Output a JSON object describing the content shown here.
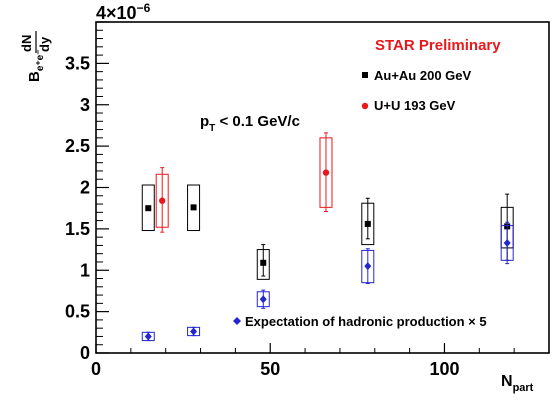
{
  "chart_data": {
    "type": "scatter",
    "xlim": [
      0,
      130
    ],
    "ylim": [
      0,
      4
    ],
    "x_ticks": [
      0,
      50,
      100
    ],
    "x_tick_labels": [
      "0",
      "50",
      "100"
    ],
    "y_ticks": [
      0,
      0.5,
      1,
      1.5,
      2,
      2.5,
      3,
      3.5,
      4
    ],
    "y_tick_labels": [
      "0",
      "0.5",
      "1",
      "1.5",
      "2",
      "2.5",
      "3",
      "3.5",
      "4"
    ],
    "y_multiplier": "×10",
    "y_exponent": "−6",
    "xlabel": {
      "main": "N",
      "sub": "part"
    },
    "ylabel": {
      "main": "B",
      "sub": "e⁺e⁻",
      "frac_num": "dN",
      "frac_den": "dy"
    },
    "preliminary": "STAR Preliminary",
    "pt_cut": {
      "p": "p",
      "sub": "T",
      "rest": " < 0.1 GeV/c"
    },
    "colors": {
      "auau": "#000000",
      "uu": "#e8191c",
      "expectation": "#2426d0",
      "preliminary": "#e8191c"
    },
    "series": [
      {
        "name": "Au+Au 200 GeV",
        "marker": "square",
        "points": [
          {
            "x": 15,
            "y": 1.75,
            "err": 0,
            "sys": [
              1.48,
              2.03
            ]
          },
          {
            "x": 28,
            "y": 1.76,
            "err": 0,
            "sys": [
              1.48,
              2.03
            ]
          },
          {
            "x": 48,
            "y": 1.09,
            "err": [
              0.93,
              1.31
            ],
            "sys": [
              0.89,
              1.25
            ]
          },
          {
            "x": 78,
            "y": 1.56,
            "err": [
              1.38,
              1.87
            ],
            "sys": [
              1.31,
              1.81
            ]
          },
          {
            "x": 118,
            "y": 1.53,
            "err": [
              1.12,
              1.92
            ],
            "sys": [
              1.27,
              1.76
            ]
          }
        ]
      },
      {
        "name": "U+U 193 GeV",
        "marker": "circle",
        "points": [
          {
            "x": 19,
            "y": 1.84,
            "err": [
              1.46,
              2.24
            ],
            "sys": [
              1.52,
              2.16
            ]
          },
          {
            "x": 66,
            "y": 2.18,
            "err": [
              1.71,
              2.66
            ],
            "sys": [
              1.76,
              2.6
            ]
          }
        ]
      },
      {
        "name": "Expectation of hadronic production × 5",
        "marker": "diamond",
        "points": [
          {
            "x": 15,
            "y": 0.2,
            "err": [
              0.15,
              0.25
            ],
            "sys": [
              0.15,
              0.25
            ]
          },
          {
            "x": 28,
            "y": 0.26,
            "err": [
              0.21,
              0.31
            ],
            "sys": [
              0.21,
              0.31
            ]
          },
          {
            "x": 48,
            "y": 0.65,
            "err": [
              0.54,
              0.76
            ],
            "sys": [
              0.56,
              0.74
            ]
          },
          {
            "x": 78,
            "y": 1.05,
            "err": [
              0.84,
              1.26
            ],
            "sys": [
              0.85,
              1.24
            ]
          },
          {
            "x": 118,
            "y": 1.33,
            "err": [
              1.08,
              1.58
            ],
            "sys": [
              1.12,
              1.54
            ]
          }
        ]
      }
    ]
  }
}
